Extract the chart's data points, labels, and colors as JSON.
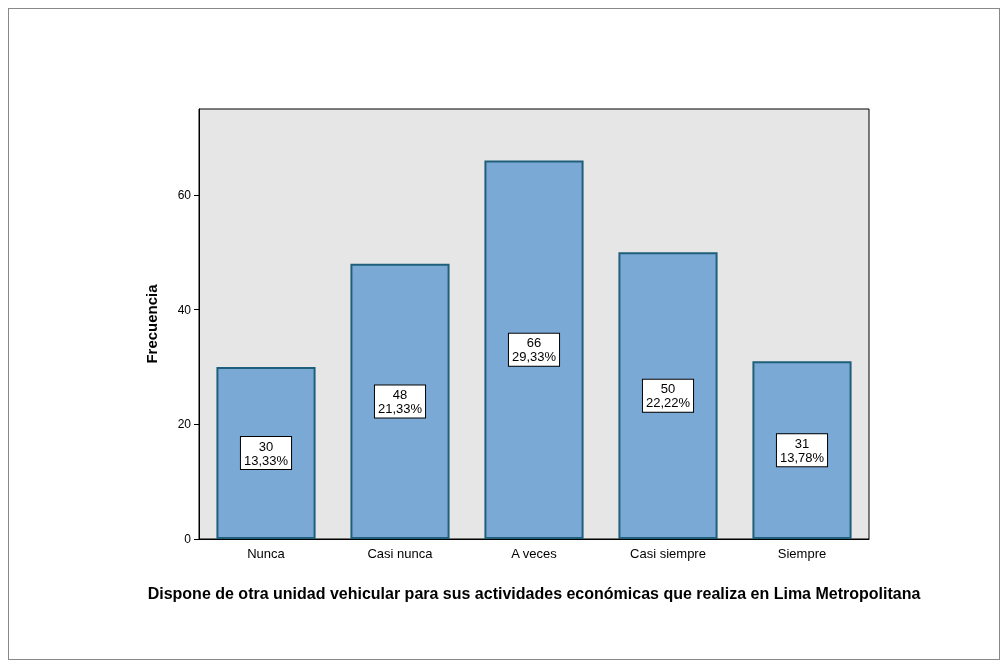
{
  "chart_data": {
    "type": "bar",
    "xlabel": "Dispone de otra unidad vehicular para sus actividades económicas que realiza en Lima Metropolitana",
    "ylabel": "Frecuencia",
    "categories": [
      "Nunca",
      "Casi nunca",
      "A veces",
      "Casi siempre",
      "Siempre"
    ],
    "values": [
      30,
      48,
      66,
      50,
      31
    ],
    "value_labels": [
      "30\n13,33%",
      "48\n21,33%",
      "66\n29,33%",
      "50\n22,22%",
      "31\n13,78%"
    ],
    "color": "#7aa9d6",
    "ylim": [
      0,
      75
    ],
    "yticks": [
      0,
      20,
      40,
      60
    ],
    "grid": false
  }
}
